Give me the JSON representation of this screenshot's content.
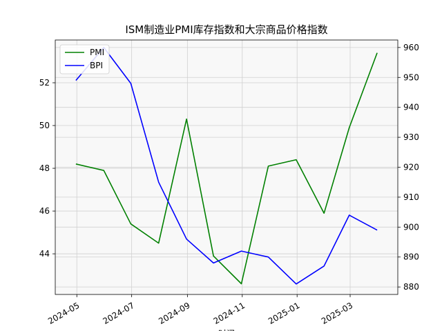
{
  "chart_data": {
    "type": "line",
    "title": "ISM制造业PMI库存指数和大宗商品价格指数",
    "xlabel": "时间",
    "x_ticks": [
      "2024-05",
      "2024-07",
      "2024-09",
      "2024-11",
      "2025-01",
      "2025-03"
    ],
    "x": [
      "2024-04-30",
      "2024-05-31",
      "2024-06-30",
      "2024-07-31",
      "2024-08-31",
      "2024-09-30",
      "2024-10-31",
      "2024-11-30",
      "2024-12-31",
      "2025-01-31",
      "2025-02-28",
      "2025-03-31"
    ],
    "series": [
      {
        "name": "PMI",
        "axis": "left",
        "color": "#008000",
        "values": [
          48.2,
          47.9,
          45.4,
          44.5,
          50.3,
          43.9,
          42.6,
          48.1,
          48.4,
          45.9,
          49.9,
          53.4
        ]
      },
      {
        "name": "BPI",
        "axis": "right",
        "color": "#0000ff",
        "values": [
          949,
          960,
          948,
          915,
          896,
          888,
          892,
          890,
          881,
          887,
          904,
          899
        ]
      }
    ],
    "y_left": {
      "ticks": [
        44,
        46,
        48,
        50,
        52
      ],
      "lim": [
        42.1,
        54.0
      ]
    },
    "y_right": {
      "ticks": [
        880,
        890,
        900,
        910,
        920,
        930,
        940,
        950,
        960
      ],
      "lim": [
        877.5,
        962.5
      ]
    },
    "x_range": [
      "2024-04-07",
      "2025-04-23"
    ],
    "grid": true,
    "legend": "upper-left"
  }
}
